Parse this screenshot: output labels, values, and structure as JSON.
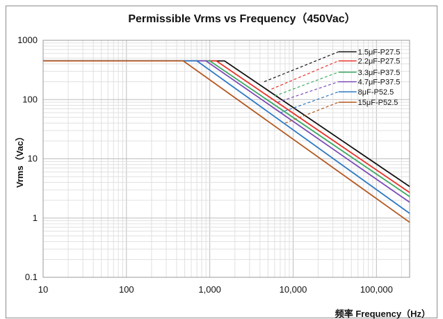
{
  "chart_data": {
    "type": "line",
    "title": "Permissible Vrms vs Frequency（450Vac）",
    "xlabel": "频率 Frequency（Hz）",
    "ylabel": "Vrms（Vac）",
    "x_scale": "log",
    "y_scale": "log",
    "xlim": [
      10,
      250000
    ],
    "ylim": [
      0.1,
      1000
    ],
    "x_ticks": [
      {
        "value": 10,
        "label": "10"
      },
      {
        "value": 100,
        "label": "100"
      },
      {
        "value": 1000,
        "label": "1,000"
      },
      {
        "value": 10000,
        "label": "10,000"
      },
      {
        "value": 100000,
        "label": "100,000"
      }
    ],
    "y_ticks": [
      {
        "value": 0.1,
        "label": "0.1"
      },
      {
        "value": 1,
        "label": "1"
      },
      {
        "value": 10,
        "label": "10"
      },
      {
        "value": 100,
        "label": "100"
      },
      {
        "value": 1000,
        "label": "1000"
      }
    ],
    "grid": true,
    "legend_position": "top-right",
    "series": [
      {
        "name": "1.5μF-P27.5",
        "color": "#111111",
        "x": [
          10,
          1500,
          250000
        ],
        "y": [
          450,
          450,
          3.4
        ],
        "leader": {
          "x": [
            4500,
            35000
          ],
          "y": [
            200,
            640
          ]
        }
      },
      {
        "name": "2.2μF-P27.5",
        "color": "#e8312a",
        "x": [
          10,
          1200,
          250000
        ],
        "y": [
          450,
          450,
          2.7
        ],
        "leader": {
          "x": [
            5500,
            35000
          ],
          "y": [
            150,
            450
          ]
        }
      },
      {
        "name": "3.3μF-P37.5",
        "color": "#3ba862",
        "x": [
          10,
          1000,
          250000
        ],
        "y": [
          450,
          450,
          2.3
        ],
        "leader": {
          "x": [
            6000,
            35000
          ],
          "y": [
            115,
            290
          ]
        }
      },
      {
        "name": "4.7μF-P37.5",
        "color": "#7b4bb7",
        "x": [
          10,
          900,
          250000
        ],
        "y": [
          450,
          450,
          1.85
        ],
        "leader": {
          "x": [
            6500,
            35000
          ],
          "y": [
            90,
            200
          ]
        }
      },
      {
        "name": "8μF-P52.5",
        "color": "#2b78c4",
        "x": [
          10,
          700,
          250000
        ],
        "y": [
          450,
          450,
          1.2
        ],
        "leader": {
          "x": [
            7000,
            35000
          ],
          "y": [
            60,
            135
          ]
        }
      },
      {
        "name": "15μF-P52.5",
        "color": "#b3571f",
        "x": [
          10,
          480,
          250000
        ],
        "y": [
          450,
          450,
          0.85
        ],
        "leader": {
          "x": [
            8000,
            35000
          ],
          "y": [
            40,
            90
          ]
        }
      }
    ]
  }
}
